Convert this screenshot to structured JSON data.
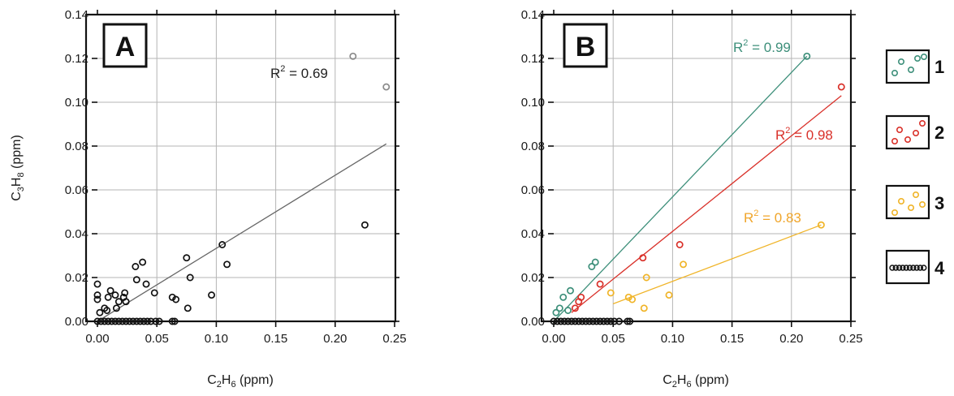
{
  "chart_data": [
    {
      "type": "scatter",
      "panel": "A",
      "xlabel_main": "C",
      "xlabel_sub": "2",
      "xlabel_tail": "H",
      "xlabel_sub2": "6",
      "xlabel_unit": " (ppm)",
      "ylabel_main": "C",
      "ylabel_sub": "3",
      "ylabel_tail": "H",
      "ylabel_sub2": "8",
      "ylabel_unit": " (ppm)",
      "xlim": [
        0,
        0.25
      ],
      "ylim": [
        0,
        0.14
      ],
      "xticks": [
        "0.00",
        "0.05",
        "0.10",
        "0.15",
        "0.20",
        "0.25"
      ],
      "yticks": [
        "0.00",
        "0.02",
        "0.04",
        "0.06",
        "0.08",
        "0.10",
        "0.12",
        "0.14"
      ],
      "grid": true,
      "annotation": {
        "prefix": "R",
        "sup": "2",
        "suffix": " = 0.69"
      },
      "fit_line": {
        "x": [
          0.0,
          0.243
        ],
        "y": [
          0.0,
          0.081
        ],
        "color": "#666666"
      },
      "points_light": {
        "x": [
          0.215,
          0.243
        ],
        "y": [
          0.121,
          0.107
        ],
        "color": "#8a8a8a"
      },
      "points": {
        "color": "#111111",
        "x": [
          0.0,
          0.0,
          0.0,
          0.002,
          0.006,
          0.008,
          0.009,
          0.011,
          0.015,
          0.016,
          0.018,
          0.022,
          0.023,
          0.024,
          0.032,
          0.033,
          0.038,
          0.041,
          0.048,
          0.063,
          0.066,
          0.075,
          0.076,
          0.078,
          0.096,
          0.105,
          0.109,
          0.225,
          0.063,
          0.065,
          0.0,
          0.003,
          0.006,
          0.009,
          0.012,
          0.015,
          0.018,
          0.021,
          0.024,
          0.027,
          0.03,
          0.033,
          0.036,
          0.039,
          0.042,
          0.045,
          0.049,
          0.052
        ],
        "y": [
          0.017,
          0.012,
          0.01,
          0.004,
          0.006,
          0.005,
          0.011,
          0.014,
          0.012,
          0.006,
          0.009,
          0.011,
          0.013,
          0.009,
          0.025,
          0.019,
          0.027,
          0.017,
          0.013,
          0.011,
          0.01,
          0.029,
          0.006,
          0.02,
          0.012,
          0.035,
          0.026,
          0.044,
          0.0,
          0.0,
          0.0,
          0.0,
          0.0,
          0.0,
          0.0,
          0.0,
          0.0,
          0.0,
          0.0,
          0.0,
          0.0,
          0.0,
          0.0,
          0.0,
          0.0,
          0.0,
          0.0,
          0.0
        ]
      }
    },
    {
      "type": "scatter",
      "panel": "B",
      "xlabel_main": "C",
      "xlabel_sub": "2",
      "xlabel_tail": "H",
      "xlabel_sub2": "6",
      "xlabel_unit": " (ppm)",
      "xlim": [
        0,
        0.25
      ],
      "ylim": [
        0,
        0.14
      ],
      "xticks": [
        "0.00",
        "0.05",
        "0.10",
        "0.15",
        "0.20",
        "0.25"
      ],
      "yticks": [
        "0.00",
        "0.02",
        "0.04",
        "0.06",
        "0.08",
        "0.10",
        "0.12",
        "0.14"
      ],
      "grid": true,
      "series": [
        {
          "name": "1",
          "color": "#3d8f7a",
          "x": [
            0.002,
            0.005,
            0.008,
            0.012,
            0.014,
            0.032,
            0.035,
            0.213
          ],
          "y": [
            0.004,
            0.006,
            0.011,
            0.005,
            0.014,
            0.025,
            0.027,
            0.121
          ],
          "fit": {
            "x": [
              0.0,
              0.213
            ],
            "y": [
              0.0,
              0.121
            ]
          },
          "r2": {
            "prefix": "R",
            "sup": "2",
            "suffix": " = 0.99"
          }
        },
        {
          "name": "2",
          "color": "#d9312a",
          "x": [
            0.018,
            0.021,
            0.023,
            0.039,
            0.075,
            0.106,
            0.242
          ],
          "y": [
            0.006,
            0.009,
            0.011,
            0.017,
            0.029,
            0.035,
            0.107
          ],
          "fit": {
            "x": [
              0.015,
              0.242
            ],
            "y": [
              0.004,
              0.103
            ]
          },
          "r2": {
            "prefix": "R",
            "sup": "2",
            "suffix": " = 0.98"
          }
        },
        {
          "name": "3",
          "color": "#f0b428",
          "x": [
            0.048,
            0.063,
            0.066,
            0.076,
            0.078,
            0.097,
            0.109,
            0.225
          ],
          "y": [
            0.013,
            0.011,
            0.01,
            0.006,
            0.02,
            0.012,
            0.026,
            0.044
          ],
          "fit": {
            "x": [
              0.05,
              0.225
            ],
            "y": [
              0.008,
              0.044
            ]
          },
          "r2": {
            "prefix": "R",
            "sup": "2",
            "suffix": " = 0.83"
          }
        },
        {
          "name": "4",
          "color": "#111111",
          "x": [
            0.0,
            0.003,
            0.006,
            0.009,
            0.012,
            0.015,
            0.018,
            0.021,
            0.024,
            0.027,
            0.03,
            0.033,
            0.036,
            0.039,
            0.042,
            0.045,
            0.048,
            0.051,
            0.055,
            0.062,
            0.064
          ],
          "y": [
            0.0,
            0.0,
            0.0,
            0.0,
            0.0,
            0.0,
            0.0,
            0.0,
            0.0,
            0.0,
            0.0,
            0.0,
            0.0,
            0.0,
            0.0,
            0.0,
            0.0,
            0.0,
            0.0,
            0.0,
            0.0
          ]
        }
      ]
    }
  ],
  "legend": [
    "1",
    "2",
    "3",
    "4"
  ]
}
